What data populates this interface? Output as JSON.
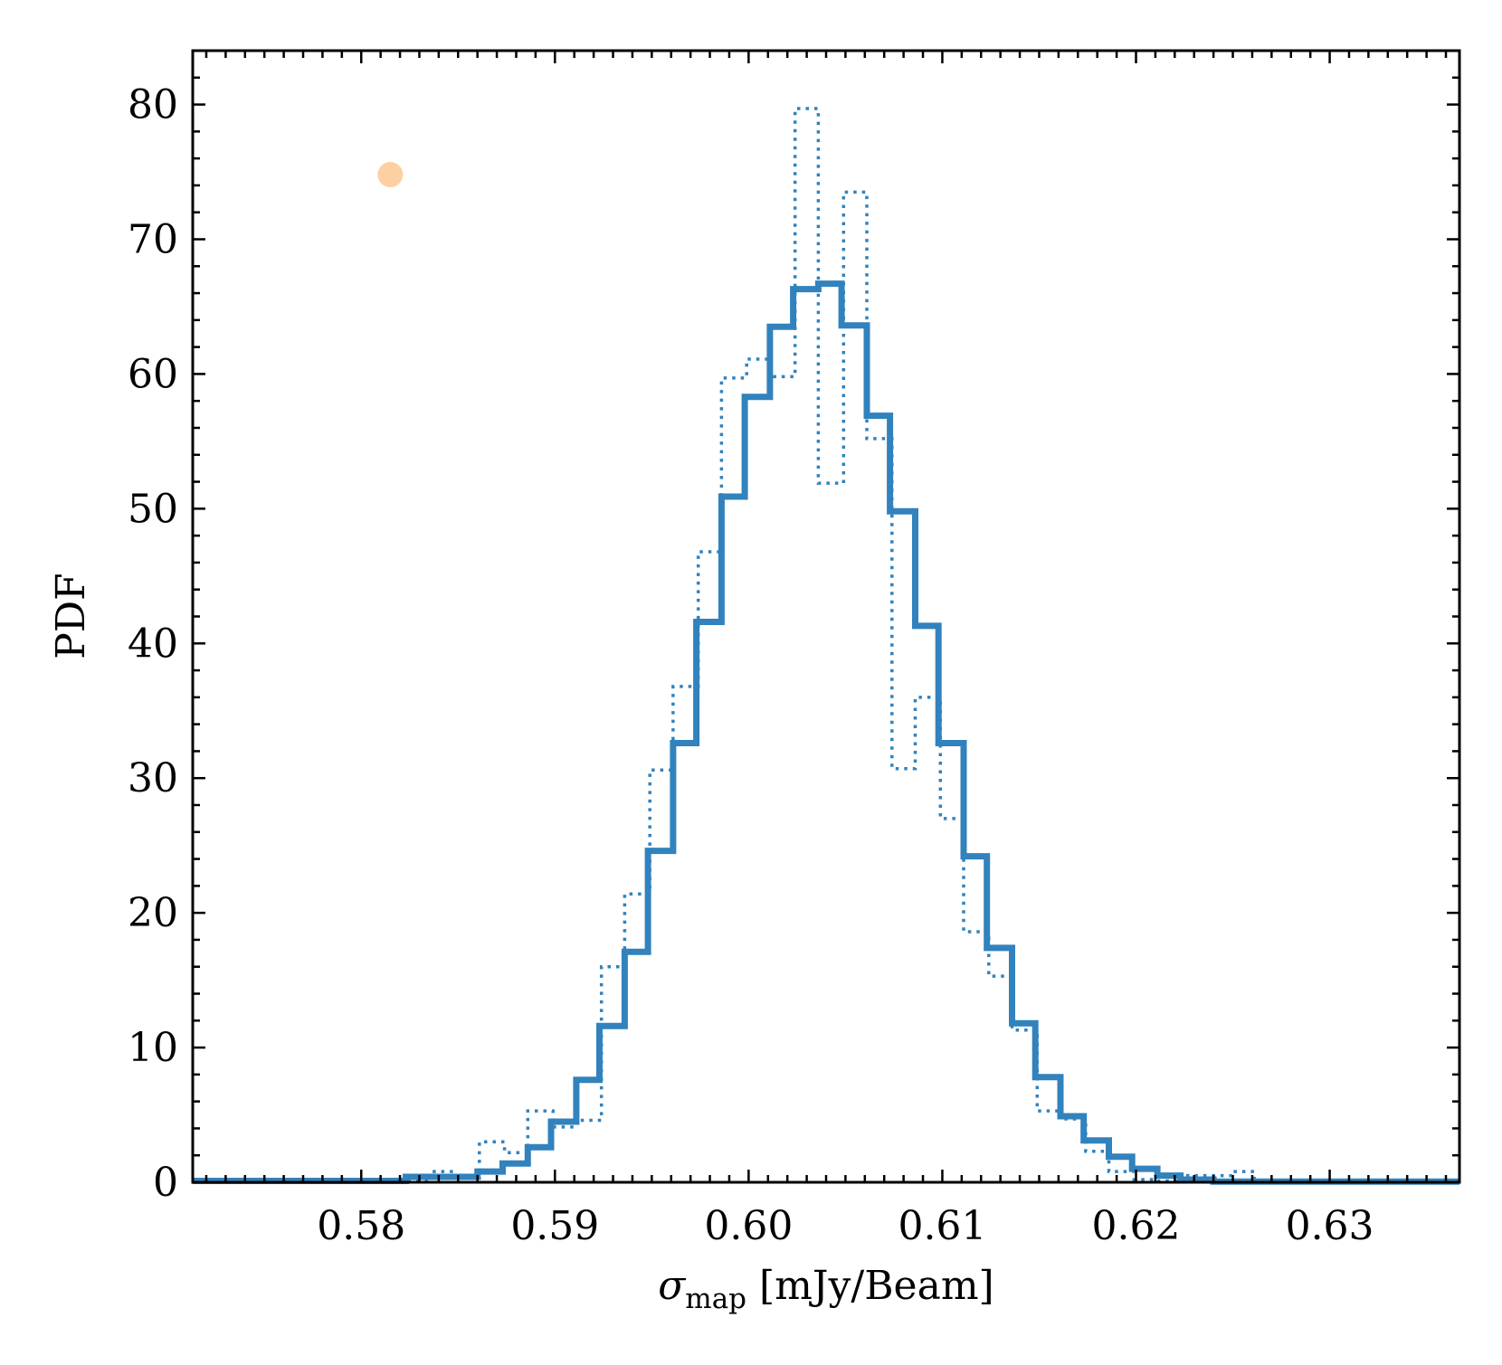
{
  "chart_data": {
    "type": "histogram",
    "xlabel_symbol": "σ",
    "xlabel_subscript": "map",
    "xlabel_unit": " [mJy/Beam]",
    "ylabel": "PDF",
    "xlim": [
      0.5713,
      0.6367
    ],
    "ylim": [
      0,
      84
    ],
    "xticks": [
      0.58,
      0.59,
      0.6,
      0.61,
      0.62,
      0.63
    ],
    "xtick_labels": [
      "0.58",
      "0.59",
      "0.60",
      "0.61",
      "0.62",
      "0.63"
    ],
    "yticks": [
      0,
      10,
      20,
      30,
      40,
      50,
      60,
      70,
      80
    ],
    "ytick_labels": [
      "0",
      "10",
      "20",
      "30",
      "40",
      "50",
      "60",
      "70",
      "80"
    ],
    "grid": false,
    "ticks_direction": "in",
    "ticks_on_all_sides": true,
    "marker": {
      "x": 0.5815,
      "y": 74.8,
      "color": "#fdd0a2"
    },
    "series": [
      {
        "style": "solid",
        "color": "#3182bd",
        "bin_edges": [
          0.5713,
          0.5823,
          0.586,
          0.5873,
          0.5886,
          0.5898,
          0.5911,
          0.5923,
          0.5936,
          0.5948,
          0.5961,
          0.5973,
          0.5986,
          0.5998,
          0.6011,
          0.6023,
          0.6036,
          0.6048,
          0.6061,
          0.6073,
          0.6086,
          0.6098,
          0.6111,
          0.6123,
          0.6136,
          0.6148,
          0.6161,
          0.6173,
          0.6186,
          0.6198,
          0.6211,
          0.6223,
          0.624,
          0.6367
        ],
        "values": [
          0.1,
          0.4,
          0.8,
          1.4,
          2.6,
          4.5,
          7.6,
          11.6,
          17.1,
          24.6,
          32.6,
          41.6,
          50.9,
          58.3,
          63.5,
          66.3,
          66.7,
          63.6,
          56.9,
          49.8,
          41.3,
          32.6,
          24.2,
          17.4,
          11.8,
          7.8,
          4.9,
          3.1,
          1.9,
          1.0,
          0.5,
          0.2,
          0.05
        ]
      },
      {
        "style": "dotted",
        "color": "#3182bd",
        "bin_edges": [
          0.5713,
          0.5836,
          0.5849,
          0.5861,
          0.5874,
          0.5886,
          0.5899,
          0.5911,
          0.5924,
          0.5936,
          0.5949,
          0.5961,
          0.5974,
          0.5986,
          0.5999,
          0.6011,
          0.6024,
          0.6036,
          0.6049,
          0.6061,
          0.6074,
          0.6086,
          0.6099,
          0.6111,
          0.6124,
          0.6136,
          0.6149,
          0.6161,
          0.6174,
          0.6186,
          0.6199,
          0.6211,
          0.6224,
          0.6249,
          0.6261,
          0.6367
        ],
        "values": [
          0.1,
          0.8,
          0.3,
          3.0,
          2.2,
          5.3,
          4.1,
          4.6,
          16.0,
          21.4,
          30.6,
          36.8,
          46.8,
          59.7,
          61.1,
          59.8,
          79.7,
          51.9,
          73.5,
          55.2,
          30.7,
          36.0,
          27.0,
          18.6,
          15.3,
          11.3,
          5.3,
          4.7,
          2.3,
          0.8,
          0.2,
          0.1,
          0.5,
          0.8,
          0.05
        ]
      }
    ]
  }
}
